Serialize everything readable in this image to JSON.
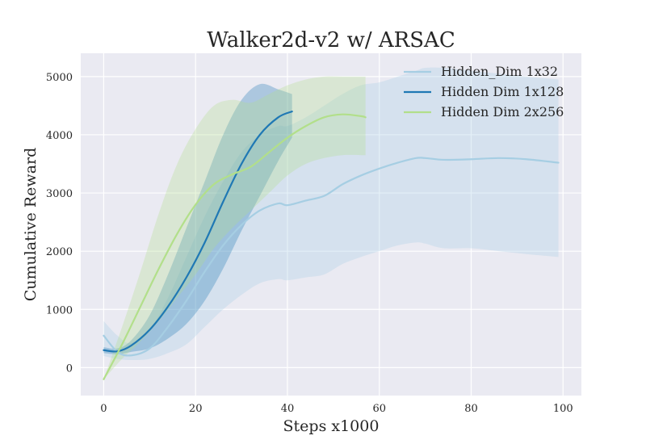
{
  "chart_data": {
    "type": "line",
    "title": "Walker2d-v2 w/ ARSAC",
    "xlabel": "Steps x1000",
    "ylabel": "Cumulative Reward",
    "xlim": [
      -5,
      104
    ],
    "ylim": [
      -480,
      5400
    ],
    "xticks": [
      0,
      20,
      40,
      60,
      80,
      100
    ],
    "yticks": [
      0,
      1000,
      2000,
      3000,
      4000,
      5000
    ],
    "grid": true,
    "legend": "top-right",
    "series": [
      {
        "name": "Hidden_Dim 1x32",
        "color": "#a6cee3",
        "x": [
          0,
          3,
          6,
          10,
          14,
          18,
          22,
          26,
          30,
          34,
          38,
          40,
          44,
          48,
          52,
          56,
          60,
          64,
          68,
          70,
          74,
          80,
          86,
          92,
          99
        ],
        "y": [
          550,
          270,
          210,
          330,
          700,
          1150,
          1650,
          2100,
          2450,
          2700,
          2820,
          2790,
          2870,
          2950,
          3150,
          3300,
          3420,
          3520,
          3600,
          3600,
          3570,
          3580,
          3600,
          3580,
          3520
        ],
        "lower": [
          200,
          150,
          130,
          150,
          250,
          400,
          700,
          1000,
          1250,
          1450,
          1520,
          1500,
          1550,
          1600,
          1780,
          1900,
          2000,
          2100,
          2150,
          2130,
          2050,
          2050,
          2000,
          1950,
          1900
        ],
        "upper": [
          800,
          550,
          420,
          650,
          1200,
          1900,
          2600,
          3200,
          3700,
          4000,
          4150,
          4150,
          4300,
          4500,
          4700,
          4850,
          4900,
          5000,
          5100,
          5150,
          5150,
          5100,
          5050,
          5000,
          4950
        ]
      },
      {
        "name": "Hidden Dim 1x128",
        "color": "#1f78b4",
        "x": [
          0,
          3,
          6,
          10,
          14,
          18,
          22,
          26,
          30,
          34,
          38,
          41
        ],
        "y": [
          300,
          280,
          380,
          650,
          1050,
          1550,
          2150,
          2850,
          3500,
          4000,
          4300,
          4400
        ],
        "lower": [
          250,
          230,
          270,
          330,
          500,
          750,
          1150,
          1700,
          2350,
          2950,
          3550,
          3950
        ],
        "upper": [
          350,
          330,
          470,
          900,
          1600,
          2400,
          3200,
          4000,
          4600,
          4870,
          4780,
          4700
        ]
      },
      {
        "name": "Hidden Dim 2x256",
        "color": "#b2df8a",
        "x": [
          0,
          4,
          8,
          12,
          16,
          20,
          24,
          28,
          32,
          36,
          40,
          44,
          48,
          52,
          56,
          57
        ],
        "y": [
          -200,
          400,
          1050,
          1700,
          2300,
          2800,
          3150,
          3320,
          3450,
          3700,
          3950,
          4150,
          4300,
          4350,
          4320,
          4300
        ],
        "lower": [
          -200,
          150,
          450,
          800,
          1200,
          1600,
          2050,
          2400,
          2700,
          3000,
          3300,
          3500,
          3600,
          3650,
          3650,
          3650
        ],
        "upper": [
          -200,
          700,
          1650,
          2650,
          3500,
          4100,
          4500,
          4600,
          4550,
          4700,
          4850,
          4950,
          5000,
          5000,
          5000,
          5000
        ]
      }
    ]
  }
}
